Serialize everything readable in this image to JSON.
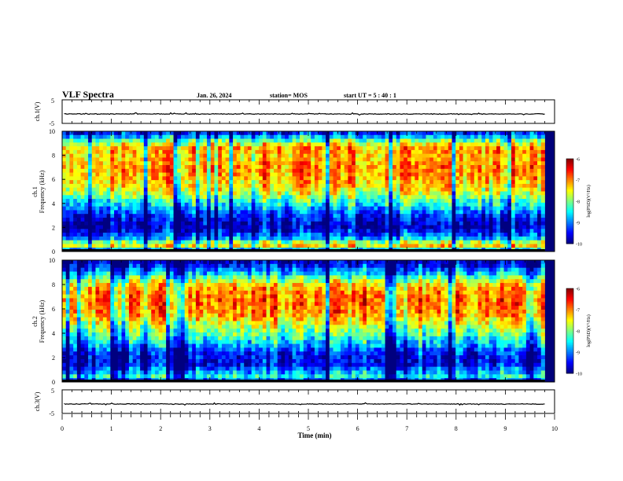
{
  "header": {
    "title": "VLF Spectra",
    "date": "Jan. 26, 2024",
    "station": "station= MOS",
    "start": "start  UT =   5 : 40 : 1"
  },
  "chart_data": [
    {
      "type": "line",
      "name": "ch1-waveform",
      "ylabel": "ch.1(V)",
      "ylim": [
        -5,
        5
      ],
      "yticks": [
        "5",
        "-5"
      ],
      "level": -1,
      "xlim": [
        0,
        10
      ]
    },
    {
      "type": "heatmap",
      "name": "ch1-spectrogram",
      "ylabel_top": "ch.1",
      "ylabel": "Frequency (kHz)",
      "ylim": [
        0,
        10
      ],
      "yticks": [
        "0",
        "2",
        "4",
        "6",
        "8",
        "10"
      ],
      "xlim": [
        0,
        9.8
      ],
      "colorbar": {
        "label": "log(PSD)(V²/Hz)",
        "range": [
          -10,
          -6
        ],
        "ticks": [
          "-6",
          "-7",
          "-8",
          "-9",
          "-10"
        ]
      },
      "profile": {
        "freq_khz": [
          0,
          0.3,
          0.7,
          1.0,
          1.5,
          2.0,
          2.5,
          3.0,
          3.5,
          4.0,
          4.5,
          5.0,
          6.0,
          7.0,
          8.0,
          8.5,
          9.0,
          9.5,
          10.0
        ],
        "log_psd": [
          -10,
          -7.2,
          -7.6,
          -8.6,
          -9.3,
          -9.7,
          -9.6,
          -9.3,
          -8.8,
          -8.4,
          -8.0,
          -7.5,
          -7.1,
          -7.0,
          -7.2,
          -7.0,
          -7.6,
          -8.6,
          -9.6
        ]
      }
    },
    {
      "type": "heatmap",
      "name": "ch2-spectrogram",
      "ylabel_top": "ch.2",
      "ylabel": "Frequency (kHz)",
      "ylim": [
        0,
        10
      ],
      "yticks": [
        "0",
        "2",
        "4",
        "6",
        "8",
        "10"
      ],
      "xlim": [
        0,
        9.8
      ],
      "colorbar": {
        "label": "log(PSD)(V²/Hz)",
        "range": [
          -10,
          -6
        ],
        "ticks": [
          "-6",
          "-7",
          "-8",
          "-9",
          "-10"
        ]
      },
      "profile": {
        "freq_khz": [
          0,
          0.3,
          0.8,
          1.5,
          2.0,
          2.5,
          3.0,
          4.0,
          5.0,
          5.5,
          6.5,
          7.5,
          8.0,
          8.5,
          9.0,
          9.5,
          10.0
        ],
        "log_psd": [
          -10,
          -8.2,
          -8.8,
          -9.6,
          -9.5,
          -9.3,
          -8.8,
          -8.1,
          -7.5,
          -7.1,
          -6.9,
          -7.0,
          -7.4,
          -8.0,
          -8.8,
          -9.4,
          -9.8
        ]
      }
    },
    {
      "type": "line",
      "name": "ch3-waveform",
      "ylabel": "ch.3(V)",
      "ylim": [
        -5,
        5
      ],
      "yticks": [
        "5",
        "-5"
      ],
      "level": -1,
      "xlim": [
        0,
        10
      ]
    }
  ],
  "xaxis": {
    "label": "Time (min)",
    "ticks": [
      "0",
      "1",
      "2",
      "3",
      "4",
      "5",
      "6",
      "7",
      "8",
      "9",
      "10"
    ],
    "range": [
      0,
      10
    ]
  }
}
